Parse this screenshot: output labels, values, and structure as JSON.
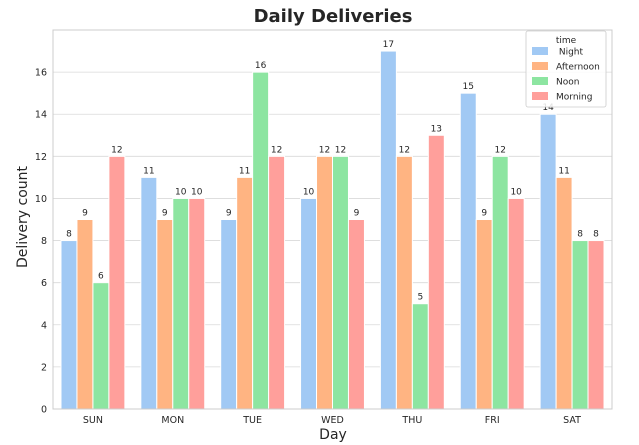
{
  "chart_data": {
    "type": "bar",
    "title": "Daily Deliveries",
    "xlabel": "Day",
    "ylabel": "Delivery count",
    "categories": [
      "SUN",
      "MON",
      "TUE",
      "WED",
      "THU",
      "FRI",
      "SAT"
    ],
    "ylim": [
      0,
      18
    ],
    "yticks": [
      0,
      2,
      4,
      6,
      8,
      10,
      12,
      14,
      16
    ],
    "grid": "y",
    "legend": {
      "title": "time",
      "position": "top-right"
    },
    "series": [
      {
        "name": " Night",
        "color": "#a1c9f4",
        "values": [
          8,
          11,
          9,
          10,
          17,
          15,
          14
        ]
      },
      {
        "name": "Afternoon",
        "color": "#ffb482",
        "values": [
          9,
          9,
          11,
          12,
          12,
          9,
          11
        ]
      },
      {
        "name": "Noon",
        "color": "#8de5a1",
        "values": [
          6,
          10,
          16,
          12,
          5,
          12,
          8
        ]
      },
      {
        "name": "Morning",
        "color": "#ff9f9b",
        "values": [
          12,
          10,
          12,
          9,
          13,
          10,
          8
        ]
      }
    ]
  }
}
